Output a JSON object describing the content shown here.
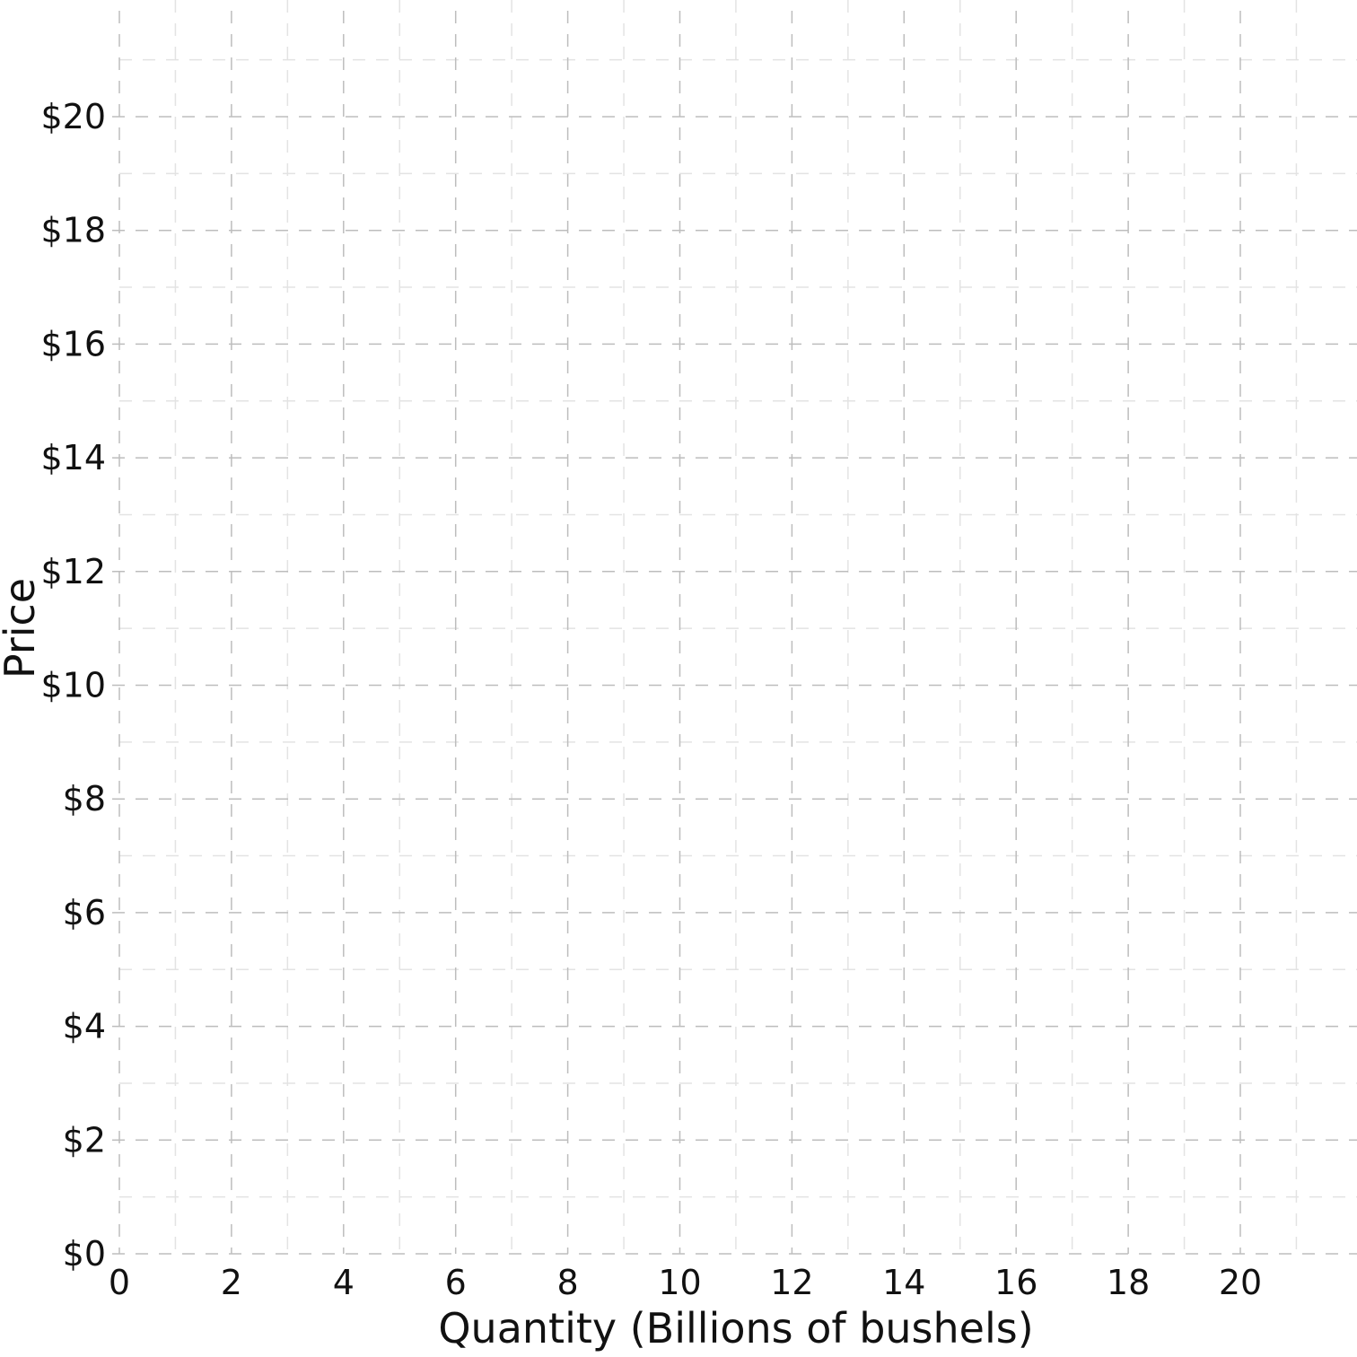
{
  "chart_data": {
    "type": "line",
    "title": "",
    "xlabel": "Quantity (Billions of bushels)",
    "ylabel": "Price",
    "xlim": [
      0,
      21.5
    ],
    "ylim": [
      0,
      21
    ],
    "x_ticks": [
      0,
      2,
      4,
      6,
      8,
      10,
      12,
      14,
      16,
      18,
      20
    ],
    "x_tick_labels": [
      "0",
      "2",
      "4",
      "6",
      "8",
      "10",
      "12",
      "14",
      "16",
      "18",
      "20"
    ],
    "y_ticks": [
      0,
      2,
      4,
      6,
      8,
      10,
      12,
      14,
      16,
      18,
      20
    ],
    "y_tick_labels": [
      "$0",
      "$2",
      "$4",
      "$6",
      "$8",
      "$10",
      "$12",
      "$14",
      "$16",
      "$18",
      "$20"
    ],
    "grid": true,
    "grid_style": "dashed",
    "series": []
  },
  "colors": {
    "major_grid": "#bdbdbd",
    "minor_grid": "#e3e3e3",
    "text": "#111111"
  }
}
